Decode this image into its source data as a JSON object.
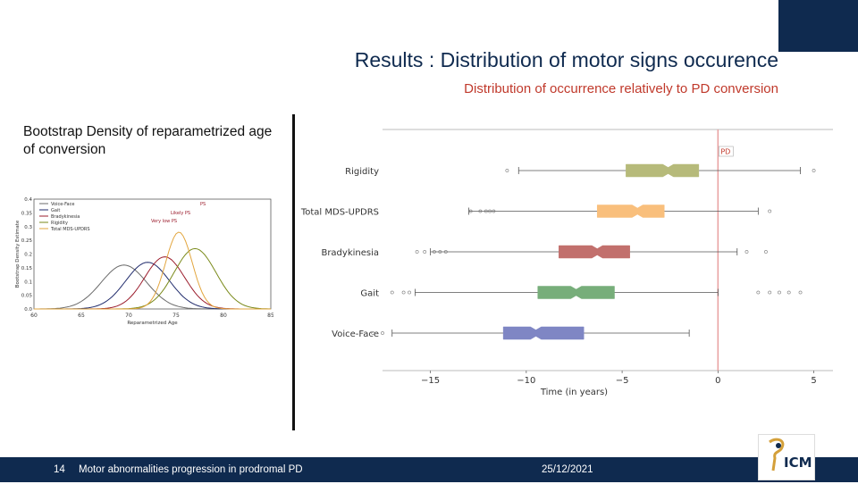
{
  "header": {
    "title": "Results : Distribution of motor signs occurence",
    "subtitle": "Distribution of occurrence relatively to PD conversion"
  },
  "left_panel": {
    "caption": "Bootstrap Density of reparametrized age of conversion"
  },
  "footer": {
    "page_number": "14",
    "presentation_title": "Motor abnormalities progression in prodromal PD",
    "date": "25/12/2021"
  },
  "logo": {
    "text": "ICM",
    "icon": "icm-brain-logo"
  },
  "chart_data": [
    {
      "type": "line",
      "title": "",
      "xlabel": "Reparametrized Age",
      "ylabel": "Bootstrap Density Estimate",
      "xlim": [
        60,
        85
      ],
      "ylim": [
        0,
        0.4
      ],
      "x_ticks": [
        "60",
        "65",
        "70",
        "75",
        "80",
        "85"
      ],
      "y_ticks": [
        "0.0",
        "0.05",
        "0.1",
        "0.15",
        "0.2",
        "0.25",
        "0.3",
        "0.35",
        "0.4"
      ],
      "legend_placement": "top-left",
      "annotations": [
        "PS",
        "Likely PS",
        "Very low PS"
      ],
      "series": [
        {
          "name": "Voice-Face",
          "color": "#6b6b6b",
          "mean": 69.5,
          "sd": 2.4,
          "peak": 0.16
        },
        {
          "name": "Gait",
          "color": "#1f2a6b",
          "mean": 72.0,
          "sd": 2.3,
          "peak": 0.17
        },
        {
          "name": "Bradykinesia",
          "color": "#9b1c2c",
          "mean": 73.8,
          "sd": 2.1,
          "peak": 0.19
        },
        {
          "name": "Rigidity",
          "color": "#7a8a1a",
          "mean": 77.0,
          "sd": 2.2,
          "peak": 0.22
        },
        {
          "name": "Total MDS-UPDRS",
          "color": "#e2a53d",
          "mean": 75.3,
          "sd": 1.4,
          "peak": 0.28
        }
      ]
    },
    {
      "type": "box",
      "title": "",
      "xlabel": "Time (in years)",
      "xlim": [
        -17.5,
        6
      ],
      "x_ticks": [
        -15,
        -10,
        -5,
        0,
        5
      ],
      "x_tick_labels": [
        "−15",
        "−10",
        "−5",
        "0",
        "5"
      ],
      "reference_line": {
        "x": 0,
        "label": "PD"
      },
      "categories": [
        "Rigidity",
        "Total MDS-UPDRS",
        "Bradykinesia",
        "Gait",
        "Voice-Face"
      ],
      "boxes": [
        {
          "name": "Rigidity",
          "color": "#b6ba7a",
          "whisker_low": -10.4,
          "q1": -4.8,
          "median": -2.6,
          "q3": -1.0,
          "whisker_high": 4.3,
          "outliers": [
            -11.0,
            5.0
          ]
        },
        {
          "name": "Total MDS-UPDRS",
          "color": "#f9bf7c",
          "whisker_low": -13.0,
          "q1": -6.3,
          "median": -4.2,
          "q3": -2.8,
          "whisker_high": 2.1,
          "outliers": [
            -12.9,
            -12.4,
            -12.1,
            -11.9,
            -11.7,
            2.7
          ]
        },
        {
          "name": "Bradykinesia",
          "color": "#c2706d",
          "whisker_low": -15.0,
          "q1": -8.3,
          "median": -6.3,
          "q3": -4.6,
          "whisker_high": 1.0,
          "outliers": [
            -15.7,
            -15.3,
            -14.8,
            -14.5,
            -14.2,
            1.5,
            2.5
          ]
        },
        {
          "name": "Gait",
          "color": "#77ae7a",
          "whisker_low": -15.8,
          "q1": -9.4,
          "median": -7.4,
          "q3": -5.4,
          "whisker_high": 0.0,
          "outliers": [
            -17.0,
            -16.4,
            -16.1,
            2.1,
            2.7,
            3.2,
            3.7,
            4.3
          ]
        },
        {
          "name": "Voice-Face",
          "color": "#7f86c4",
          "whisker_low": -17.0,
          "q1": -11.2,
          "median": -9.5,
          "q3": -7.0,
          "whisker_high": -1.5,
          "outliers": [
            -18.0,
            -17.5
          ]
        }
      ]
    }
  ]
}
